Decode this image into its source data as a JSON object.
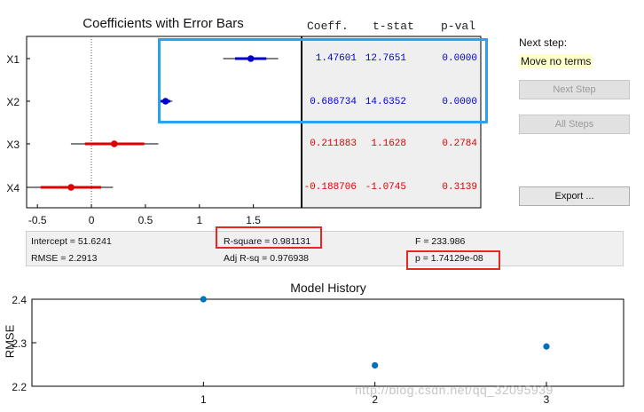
{
  "coef_chart": {
    "title": "Coefficients with Error Bars",
    "terms": [
      "X1",
      "X2",
      "X3",
      "X4"
    ],
    "x_ticks": [
      "-0.5",
      "0",
      "0.5",
      "1",
      "1.5"
    ],
    "xlim": [
      -0.6,
      1.93
    ]
  },
  "table": {
    "headers": [
      "Coeff.",
      "t-stat",
      "p-val"
    ],
    "rows": [
      {
        "coeff": "1.47601",
        "tstat": "12.7651",
        "pval": "0.0000",
        "in_model": true
      },
      {
        "coeff": "0.686734",
        "tstat": "14.6352",
        "pval": "0.0000",
        "in_model": true
      },
      {
        "coeff": "0.211883",
        "tstat": "1.1628",
        "pval": "0.2784",
        "in_model": false
      },
      {
        "coeff": "-0.188706",
        "tstat": "-1.0745",
        "pval": "0.3139",
        "in_model": false
      }
    ]
  },
  "stats": {
    "intercept": "Intercept = 51.6241",
    "rmse": "RMSE = 2.2913",
    "rsquare": "R-square = 0.981131",
    "adj_rsq": "Adj R-sq = 0.976938",
    "f": "F = 233.986",
    "p": "p = 1.74129e-08"
  },
  "side_panel": {
    "next_step_label": "Next step:",
    "next_step_value": "Move no terms",
    "next_step_button": "Next Step",
    "all_steps_button": "All Steps",
    "export_button": "Export ..."
  },
  "watermark": "http://blog.csdn.net/qq_32095939",
  "colors": {
    "in_model": "#0000cc",
    "out_model": "#dd0000",
    "history_marker": "#0072bd",
    "highlight_red": "#e8281e",
    "highlight_blue": "#2ea1ea",
    "next_step_bg": "#ffffcc"
  },
  "chart_data": [
    {
      "type": "scatter",
      "title": "Coefficients with Error Bars",
      "categories": [
        "X1",
        "X2",
        "X3",
        "X4"
      ],
      "series": [
        {
          "name": "",
          "values": [
            1.47601,
            0.686734,
            0.211883,
            -0.188706
          ],
          "ci95": [
            [
              1.22,
              1.73
            ],
            [
              0.62,
              0.75
            ],
            [
              -0.19,
              0.62
            ],
            [
              -0.58,
              0.2
            ]
          ],
          "ci_thick": [
            [
              1.33,
              1.62
            ],
            [
              0.64,
              0.73
            ],
            [
              -0.06,
              0.49
            ],
            [
              -0.47,
              0.09
            ]
          ]
        }
      ],
      "xlim": [
        -0.6,
        1.93
      ],
      "grid": false
    },
    {
      "type": "scatter",
      "title": "Model History",
      "xlabel": "",
      "ylabel": "RMSE",
      "x": [
        1,
        2,
        3
      ],
      "y": [
        2.4,
        2.248,
        2.2913
      ],
      "x_ticks": [
        "1",
        "2",
        "3"
      ],
      "y_ticks": [
        "2.2",
        "2.3",
        "2.4"
      ],
      "xlim": [
        0.0,
        3.45
      ],
      "ylim": [
        2.2,
        2.4
      ],
      "grid": false
    }
  ]
}
